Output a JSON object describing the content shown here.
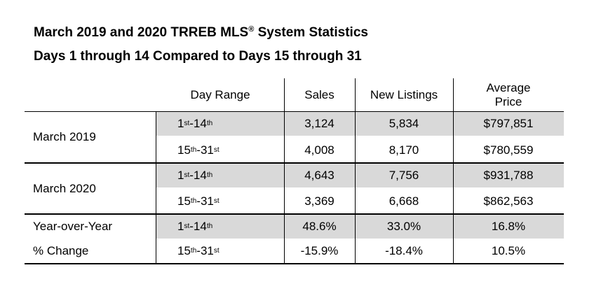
{
  "title_line1": "March 2019 and 2020 TRREB MLS",
  "title_reg": "®",
  "title_line1_end": " System Statistics",
  "title_line2": "Days 1 through 14 Compared to Days 15 through 31",
  "columns": {
    "day_range": "Day Range",
    "sales": "Sales",
    "new_listings": "New Listings",
    "avg_price_1": "Average",
    "avg_price_2": "Price"
  },
  "groups": [
    {
      "label": "March 2019",
      "rows": [
        {
          "range_a": "1",
          "range_a_sup": "st",
          "dash": "-",
          "range_b": "14",
          "range_b_sup": "th",
          "sales": "3,124",
          "listings": "5,834",
          "price": "$797,851"
        },
        {
          "range_a": "15",
          "range_a_sup": "th",
          "dash": "-",
          "range_b": "31",
          "range_b_sup": "st",
          "sales": "4,008",
          "listings": "8,170",
          "price": "$780,559"
        }
      ]
    },
    {
      "label": "March 2020",
      "rows": [
        {
          "range_a": "1",
          "range_a_sup": "st",
          "dash": "-",
          "range_b": "14",
          "range_b_sup": "th",
          "sales": "4,643",
          "listings": "7,756",
          "price": "$931,788"
        },
        {
          "range_a": "15",
          "range_a_sup": "th",
          "dash": "-",
          "range_b": "31",
          "range_b_sup": "st",
          "sales": "3,369",
          "listings": "6,668",
          "price": "$862,563"
        }
      ]
    },
    {
      "label": "Year-over-Year",
      "label2": "% Change",
      "rows": [
        {
          "range_a": "1",
          "range_a_sup": "st",
          "dash": "-",
          "range_b": "14",
          "range_b_sup": "th",
          "sales": "48.6%",
          "listings": "33.0%",
          "price": "16.8%"
        },
        {
          "range_a": "15",
          "range_a_sup": "th",
          "dash": "-",
          "range_b": "31",
          "range_b_sup": "st",
          "sales": "-15.9%",
          "listings": "-18.4%",
          "price": "10.5%"
        }
      ]
    }
  ]
}
